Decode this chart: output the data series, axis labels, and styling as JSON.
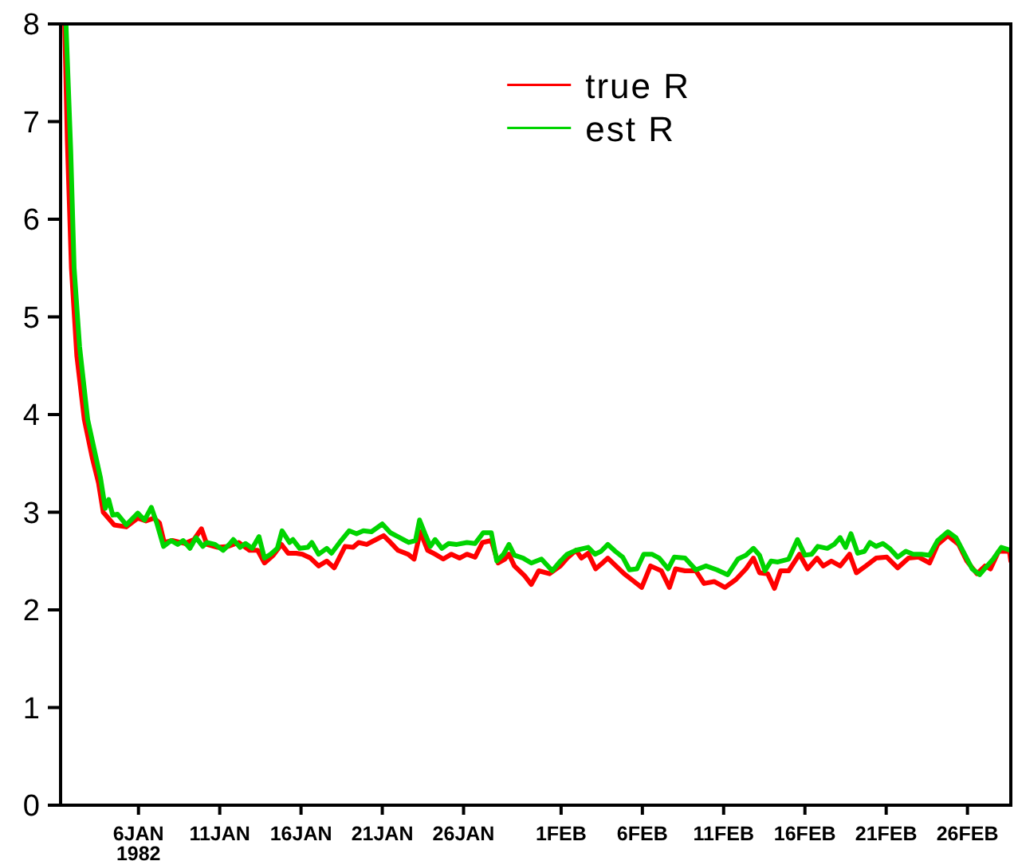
{
  "chart_data": {
    "type": "line",
    "xlim": [
      "1982-01-01T05:00",
      "1982-02-28T16:00"
    ],
    "xticks": [
      {
        "value": "1982-01-06",
        "label": "6JAN\n1982"
      },
      {
        "value": "1982-01-11",
        "label": "11JAN"
      },
      {
        "value": "1982-01-16",
        "label": "16JAN"
      },
      {
        "value": "1982-01-21",
        "label": "21JAN"
      },
      {
        "value": "1982-01-26",
        "label": "26JAN"
      },
      {
        "value": "1982-02-01",
        "label": "1FEB"
      },
      {
        "value": "1982-02-06",
        "label": "6FEB"
      },
      {
        "value": "1982-02-11",
        "label": "11FEB"
      },
      {
        "value": "1982-02-16",
        "label": "16FEB"
      },
      {
        "value": "1982-02-21",
        "label": "21FEB"
      },
      {
        "value": "1982-02-26",
        "label": "26FEB"
      }
    ],
    "ylim": [
      0,
      8
    ],
    "yticks": [
      0,
      1,
      2,
      3,
      4,
      5,
      6,
      7,
      8
    ],
    "legend": "top right",
    "series": [
      {
        "name": "true R",
        "color": "#ff0000",
        "x": [
          "1982-01-01T11:00",
          "1982-01-01T15:00",
          "1982-01-01T21:00",
          "1982-01-02T05:00",
          "1982-01-02T16:00",
          "1982-01-03T04:00",
          "1982-01-03T13:00",
          "1982-01-03T20:00",
          "1982-01-04T12:00",
          "1982-01-05T06:00",
          "1982-01-05T23:00",
          "1982-01-06T11:00",
          "1982-01-06T23:00",
          "1982-01-07T07:00",
          "1982-01-07T14:00",
          "1982-01-08T02:00",
          "1982-01-08T20:00",
          "1982-01-09T10:00",
          "1982-01-09T21:00",
          "1982-01-10T05:00",
          "1982-01-10T21:00",
          "1982-01-11T12:00",
          "1982-01-12T04:00",
          "1982-01-12T20:00",
          "1982-01-13T08:00",
          "1982-01-13T18:00",
          "1982-01-14T07:00",
          "1982-01-14T19:00",
          "1982-01-15T05:00",
          "1982-01-15T17:00",
          "1982-01-16T02:00",
          "1982-01-16T14:00",
          "1982-01-17T02:00",
          "1982-01-17T14:00",
          "1982-01-18T01:00",
          "1982-01-18T17:00",
          "1982-01-19T05:00",
          "1982-01-19T13:00",
          "1982-01-20T01:00",
          "1982-01-20T12:00",
          "1982-01-21T02:00",
          "1982-01-21T12:00",
          "1982-01-21T23:00",
          "1982-01-22T14:00",
          "1982-01-22T23:00",
          "1982-01-23T08:00",
          "1982-01-23T19:00",
          "1982-01-24T06:00",
          "1982-01-24T18:00",
          "1982-01-25T06:00",
          "1982-01-25T18:00",
          "1982-01-26T05:00",
          "1982-01-26T17:00",
          "1982-01-27T04:00",
          "1982-01-27T17:00",
          "1982-01-28T03:00",
          "1982-01-28T13:00",
          "1982-01-28T19:00",
          "1982-01-29T03:00",
          "1982-01-29T18:00",
          "1982-01-30T04:00",
          "1982-01-30T15:00",
          "1982-01-31T07:00",
          "1982-01-31T23:00",
          "1982-02-01T09:00",
          "1982-02-01T22:00",
          "1982-02-02T06:00",
          "1982-02-02T16:00",
          "1982-02-03T03:00",
          "1982-02-03T13:00",
          "1982-02-03T21:00",
          "1982-02-04T09:00",
          "1982-02-04T21:00",
          "1982-02-05T10:00",
          "1982-02-05T23:00",
          "1982-02-06T12:00",
          "1982-02-07T04:00",
          "1982-02-07T16:00",
          "1982-02-08T01:00",
          "1982-02-08T15:00",
          "1982-02-09T07:00",
          "1982-02-09T19:00",
          "1982-02-10T10:00",
          "1982-02-11T02:00",
          "1982-02-11T18:00",
          "1982-02-12T09:00",
          "1982-02-12T20:00",
          "1982-02-13T05:00",
          "1982-02-13T17:00",
          "1982-02-14T03:00",
          "1982-02-14T12:00",
          "1982-02-15T00:00",
          "1982-02-15T16:00",
          "1982-02-16T04:00",
          "1982-02-16T18:00",
          "1982-02-17T03:00",
          "1982-02-17T15:00",
          "1982-02-18T04:00",
          "1982-02-18T18:00",
          "1982-02-19T04:00",
          "1982-02-19T18:00",
          "1982-02-20T09:00",
          "1982-02-21T01:00",
          "1982-02-21T17:00",
          "1982-02-22T09:00",
          "1982-02-23T00:00",
          "1982-02-23T16:00",
          "1982-02-24T04:00",
          "1982-02-24T19:00",
          "1982-02-25T11:00",
          "1982-02-25T23:00",
          "1982-02-26T14:00",
          "1982-02-27T02:00",
          "1982-02-27T10:00",
          "1982-02-27T22:00",
          "1982-02-28T14:00",
          "1982-02-28T16:00"
        ],
        "values": [
          8.0,
          6.8,
          5.5,
          4.6,
          3.95,
          3.55,
          3.3,
          3.0,
          2.87,
          2.85,
          2.94,
          2.91,
          2.94,
          2.89,
          2.69,
          2.71,
          2.68,
          2.72,
          2.83,
          2.67,
          2.64,
          2.65,
          2.69,
          2.61,
          2.61,
          2.48,
          2.56,
          2.67,
          2.58,
          2.58,
          2.57,
          2.53,
          2.45,
          2.5,
          2.43,
          2.65,
          2.64,
          2.69,
          2.67,
          2.71,
          2.76,
          2.69,
          2.61,
          2.57,
          2.52,
          2.8,
          2.61,
          2.57,
          2.52,
          2.57,
          2.53,
          2.57,
          2.54,
          2.69,
          2.71,
          2.48,
          2.52,
          2.57,
          2.45,
          2.35,
          2.26,
          2.4,
          2.37,
          2.45,
          2.53,
          2.61,
          2.53,
          2.58,
          2.42,
          2.48,
          2.53,
          2.45,
          2.37,
          2.3,
          2.23,
          2.45,
          2.4,
          2.23,
          2.42,
          2.4,
          2.4,
          2.27,
          2.29,
          2.23,
          2.31,
          2.42,
          2.53,
          2.38,
          2.37,
          2.22,
          2.4,
          2.4,
          2.57,
          2.42,
          2.53,
          2.45,
          2.5,
          2.45,
          2.57,
          2.38,
          2.45,
          2.53,
          2.54,
          2.43,
          2.53,
          2.54,
          2.48,
          2.67,
          2.76,
          2.67,
          2.5,
          2.37,
          2.45,
          2.42,
          2.6,
          2.6,
          2.5
        ]
      },
      {
        "name": "est R",
        "color": "#00d400",
        "x": [
          "1982-01-01T13:00",
          "1982-01-01T20:00",
          "1982-01-02T01:00",
          "1982-01-02T09:00",
          "1982-01-02T21:00",
          "1982-01-03T08:00",
          "1982-01-03T16:00",
          "1982-01-03T23:00",
          "1982-01-04T04:00",
          "1982-01-04T10:00",
          "1982-01-04T17:00",
          "1982-01-05T06:00",
          "1982-01-05T23:00",
          "1982-01-06T09:00",
          "1982-01-06T19:00",
          "1982-01-07T03:00",
          "1982-01-07T13:00",
          "1982-01-08T00:00",
          "1982-01-08T10:00",
          "1982-01-08T18:00",
          "1982-01-09T04:00",
          "1982-01-09T13:00",
          "1982-01-09T23:00",
          "1982-01-10T05:00",
          "1982-01-10T17:00",
          "1982-01-11T05:00",
          "1982-01-11T14:00",
          "1982-01-11T20:00",
          "1982-01-12T06:00",
          "1982-01-12T14:00",
          "1982-01-13T00:00",
          "1982-01-13T10:00",
          "1982-01-13T18:00",
          "1982-01-14T03:00",
          "1982-01-14T13:00",
          "1982-01-14T20:00",
          "1982-01-15T07:00",
          "1982-01-15T12:00",
          "1982-01-15T22:00",
          "1982-01-16T10:00",
          "1982-01-16T16:00",
          "1982-01-17T02:00",
          "1982-01-17T14:00",
          "1982-01-17T21:00",
          "1982-01-18T09:00",
          "1982-01-18T23:00",
          "1982-01-19T10:00",
          "1982-01-19T20:00",
          "1982-01-20T08:00",
          "1982-01-21T00:00",
          "1982-01-21T12:00",
          "1982-01-21T23:00",
          "1982-01-22T15:00",
          "1982-01-23T01:00",
          "1982-01-23T07:00",
          "1982-01-23T15:00",
          "1982-01-23T23:00",
          "1982-01-24T06:00",
          "1982-01-24T16:00",
          "1982-01-25T02:00",
          "1982-01-25T14:00",
          "1982-01-26T05:00",
          "1982-01-26T17:00",
          "1982-01-27T05:00",
          "1982-01-27T17:00",
          "1982-01-28T01:00",
          "1982-01-28T11:00",
          "1982-01-28T19:00",
          "1982-01-29T03:00",
          "1982-01-29T16:00",
          "1982-01-30T04:00",
          "1982-01-30T19:00",
          "1982-01-31T11:00",
          "1982-01-31T23:00",
          "1982-02-01T09:00",
          "1982-02-01T22:00",
          "1982-02-02T16:00",
          "1982-02-03T02:00",
          "1982-02-03T11:00",
          "1982-02-03T21:00",
          "1982-02-04T08:00",
          "1982-02-04T19:00",
          "1982-02-05T05:00",
          "1982-02-05T16:00",
          "1982-02-06T02:00",
          "1982-02-06T14:00",
          "1982-02-07T01:00",
          "1982-02-07T14:00",
          "1982-02-07T23:00",
          "1982-02-08T15:00",
          "1982-02-09T07:00",
          "1982-02-09T22:00",
          "1982-02-10T14:00",
          "1982-02-11T06:00",
          "1982-02-11T21:00",
          "1982-02-12T09:00",
          "1982-02-12T20:00",
          "1982-02-13T05:00",
          "1982-02-13T13:00",
          "1982-02-13T22:00",
          "1982-02-14T08:00",
          "1982-02-15T00:00",
          "1982-02-15T13:00",
          "1982-02-16T00:00",
          "1982-02-16T10:00",
          "1982-02-16T19:00",
          "1982-02-17T09:00",
          "1982-02-17T19:00",
          "1982-02-18T04:00",
          "1982-02-18T12:00",
          "1982-02-18T20:00",
          "1982-02-19T06:00",
          "1982-02-19T16:00",
          "1982-02-20T00:00",
          "1982-02-20T09:00",
          "1982-02-20T19:00",
          "1982-02-21T05:00",
          "1982-02-21T17:00",
          "1982-02-22T05:00",
          "1982-02-22T16:00",
          "1982-02-23T04:00",
          "1982-02-23T16:00",
          "1982-02-24T04:00",
          "1982-02-24T19:00",
          "1982-02-25T07:00",
          "1982-02-25T19:00",
          "1982-02-26T07:00",
          "1982-02-26T18:00",
          "1982-02-27T05:00",
          "1982-02-27T14:00",
          "1982-02-28T02:00",
          "1982-02-28T16:00"
        ],
        "values": [
          8.0,
          6.7,
          5.5,
          4.7,
          3.95,
          3.6,
          3.35,
          3.04,
          3.13,
          2.97,
          2.98,
          2.87,
          2.99,
          2.92,
          3.05,
          2.89,
          2.65,
          2.71,
          2.67,
          2.71,
          2.63,
          2.74,
          2.65,
          2.69,
          2.67,
          2.61,
          2.67,
          2.72,
          2.64,
          2.68,
          2.63,
          2.75,
          2.53,
          2.57,
          2.63,
          2.81,
          2.69,
          2.72,
          2.63,
          2.64,
          2.69,
          2.57,
          2.63,
          2.58,
          2.69,
          2.81,
          2.78,
          2.81,
          2.8,
          2.88,
          2.79,
          2.75,
          2.69,
          2.71,
          2.92,
          2.78,
          2.65,
          2.72,
          2.63,
          2.68,
          2.67,
          2.69,
          2.68,
          2.79,
          2.79,
          2.5,
          2.57,
          2.67,
          2.56,
          2.53,
          2.48,
          2.52,
          2.4,
          2.5,
          2.57,
          2.61,
          2.64,
          2.57,
          2.6,
          2.67,
          2.6,
          2.54,
          2.41,
          2.42,
          2.57,
          2.57,
          2.53,
          2.42,
          2.54,
          2.53,
          2.41,
          2.45,
          2.41,
          2.36,
          2.52,
          2.56,
          2.63,
          2.56,
          2.4,
          2.5,
          2.49,
          2.52,
          2.72,
          2.56,
          2.57,
          2.65,
          2.63,
          2.67,
          2.74,
          2.64,
          2.78,
          2.58,
          2.6,
          2.69,
          2.65,
          2.68,
          2.63,
          2.54,
          2.6,
          2.57,
          2.57,
          2.56,
          2.71,
          2.8,
          2.74,
          2.58,
          2.42,
          2.36,
          2.45,
          2.52,
          2.64,
          2.61
        ]
      }
    ]
  }
}
